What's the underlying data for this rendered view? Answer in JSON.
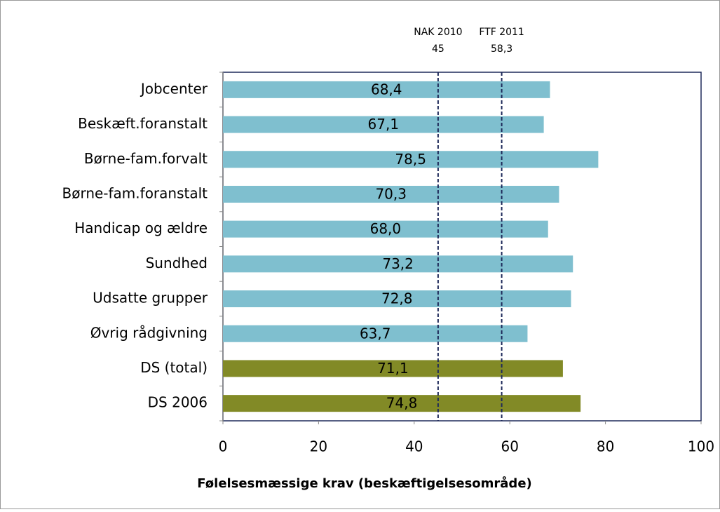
{
  "chart_data": {
    "type": "bar",
    "orientation": "horizontal",
    "xlabel": "Følelsesmæssige krav (beskæftigelsesområde)",
    "categories": [
      "Jobcenter",
      "Beskæft.foranstalt",
      "Børne-fam.forvalt",
      "Børne-fam.foranstalt",
      "Handicap og ældre",
      "Sundhed",
      "Udsatte grupper",
      "Øvrig rådgivning",
      "DS (total)",
      "DS 2006"
    ],
    "values": [
      68.4,
      67.1,
      78.5,
      70.3,
      68.0,
      73.2,
      72.8,
      63.7,
      71.1,
      74.8
    ],
    "value_labels": [
      "68,4",
      "67,1",
      "78,5",
      "70,3",
      "68,0",
      "73,2",
      "72,8",
      "63,7",
      "71,1",
      "74,8"
    ],
    "colors": [
      "#7fbfcf",
      "#7fbfcf",
      "#7fbfcf",
      "#7fbfcf",
      "#7fbfcf",
      "#7fbfcf",
      "#7fbfcf",
      "#7fbfcf",
      "#828a26",
      "#828a26"
    ],
    "xlim": [
      0,
      100
    ],
    "xticks": [
      0,
      20,
      40,
      60,
      80,
      100
    ],
    "reference_lines": [
      {
        "label": "NAK 2010",
        "value": 45,
        "value_label": "45"
      },
      {
        "label": "FTF 2011",
        "value": 58.3,
        "value_label": "58,3"
      }
    ]
  }
}
